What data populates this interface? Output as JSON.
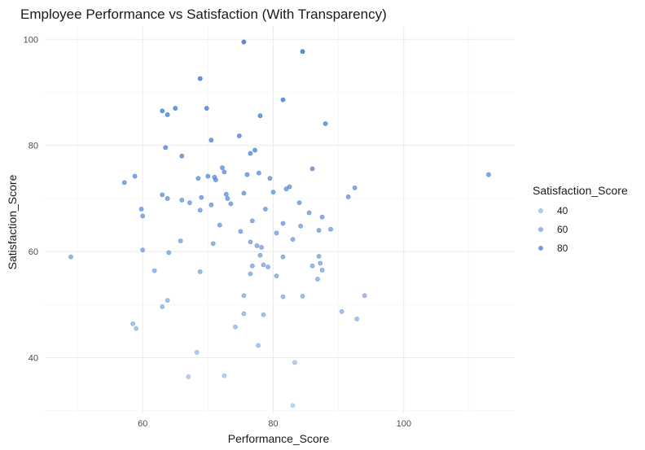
{
  "chart_data": {
    "type": "scatter",
    "title": "Employee Performance vs Satisfaction (With Transparency)",
    "xlabel": "Performance_Score",
    "ylabel": "Satisfaction_Score",
    "xlim": [
      45,
      117
    ],
    "ylim": [
      29.5,
      102.5
    ],
    "x_ticks": [
      60,
      80,
      100
    ],
    "y_ticks": [
      40,
      60,
      80,
      100
    ],
    "grid": true,
    "legend": {
      "title": "Satisfaction_Score",
      "placement": "right",
      "entries": [
        {
          "label": "40",
          "value": 40
        },
        {
          "label": "60",
          "value": 60
        },
        {
          "label": "80",
          "value": 80
        }
      ]
    },
    "colors": {
      "point": "#4a88e0",
      "point_stroke": "#3a74c8"
    },
    "points": [
      [
        75.5,
        99.5
      ],
      [
        84.5,
        97.7
      ],
      [
        68.8,
        92.6
      ],
      [
        81.5,
        88.6
      ],
      [
        63.0,
        86.5
      ],
      [
        65.0,
        87.0
      ],
      [
        69.8,
        87.0
      ],
      [
        63.8,
        85.8
      ],
      [
        78.0,
        85.6
      ],
      [
        88.0,
        84.1
      ],
      [
        74.8,
        81.8
      ],
      [
        70.5,
        81.0
      ],
      [
        63.5,
        79.6
      ],
      [
        77.2,
        79.1
      ],
      [
        76.5,
        78.5
      ],
      [
        66.0,
        78.0
      ],
      [
        86.0,
        75.6
      ],
      [
        72.2,
        75.8
      ],
      [
        113.0,
        74.5
      ],
      [
        58.8,
        74.2
      ],
      [
        72.5,
        75.0
      ],
      [
        71.0,
        74.0
      ],
      [
        70.0,
        74.2
      ],
      [
        76.0,
        74.5
      ],
      [
        77.8,
        74.8
      ],
      [
        79.5,
        73.8
      ],
      [
        57.2,
        73.0
      ],
      [
        68.5,
        73.8
      ],
      [
        71.2,
        73.5
      ],
      [
        82.0,
        71.8
      ],
      [
        82.5,
        72.2
      ],
      [
        92.5,
        72.0
      ],
      [
        75.5,
        71.0
      ],
      [
        80.0,
        71.2
      ],
      [
        63.0,
        70.7
      ],
      [
        72.8,
        70.8
      ],
      [
        91.5,
        70.3
      ],
      [
        69.0,
        70.2
      ],
      [
        63.8,
        70.0
      ],
      [
        73.0,
        70.0
      ],
      [
        66.0,
        69.7
      ],
      [
        67.2,
        69.2
      ],
      [
        73.5,
        69.0
      ],
      [
        70.5,
        68.8
      ],
      [
        84.0,
        69.2
      ],
      [
        59.8,
        68.0
      ],
      [
        68.8,
        67.8
      ],
      [
        78.8,
        68.0
      ],
      [
        85.5,
        67.3
      ],
      [
        60.0,
        66.7
      ],
      [
        87.5,
        66.5
      ],
      [
        76.8,
        65.8
      ],
      [
        81.5,
        65.3
      ],
      [
        71.8,
        65.0
      ],
      [
        84.2,
        64.8
      ],
      [
        75.0,
        63.8
      ],
      [
        87.0,
        64.0
      ],
      [
        88.8,
        64.2
      ],
      [
        80.5,
        63.5
      ],
      [
        83.0,
        62.3
      ],
      [
        65.8,
        62.0
      ],
      [
        70.8,
        61.5
      ],
      [
        76.5,
        61.8
      ],
      [
        77.5,
        61.1
      ],
      [
        78.2,
        60.8
      ],
      [
        60.0,
        60.3
      ],
      [
        64.0,
        59.8
      ],
      [
        78.0,
        59.3
      ],
      [
        81.5,
        59.0
      ],
      [
        87.0,
        59.1
      ],
      [
        49.0,
        59.0
      ],
      [
        76.8,
        57.3
      ],
      [
        78.5,
        57.5
      ],
      [
        79.2,
        57.1
      ],
      [
        86.0,
        57.3
      ],
      [
        87.2,
        57.8
      ],
      [
        87.5,
        56.5
      ],
      [
        61.8,
        56.4
      ],
      [
        68.8,
        56.2
      ],
      [
        76.5,
        55.8
      ],
      [
        80.5,
        55.4
      ],
      [
        86.8,
        54.8
      ],
      [
        75.5,
        51.7
      ],
      [
        81.5,
        51.5
      ],
      [
        84.5,
        51.6
      ],
      [
        94.0,
        51.7
      ],
      [
        63.8,
        50.8
      ],
      [
        63.0,
        49.6
      ],
      [
        90.5,
        48.7
      ],
      [
        75.5,
        48.3
      ],
      [
        78.5,
        48.1
      ],
      [
        92.8,
        47.3
      ],
      [
        58.5,
        46.4
      ],
      [
        59.0,
        45.5
      ],
      [
        74.2,
        45.8
      ],
      [
        77.7,
        42.3
      ],
      [
        68.3,
        41.0
      ],
      [
        83.3,
        39.1
      ],
      [
        67.0,
        36.4
      ],
      [
        72.5,
        36.6
      ],
      [
        83.0,
        31.0
      ]
    ]
  }
}
